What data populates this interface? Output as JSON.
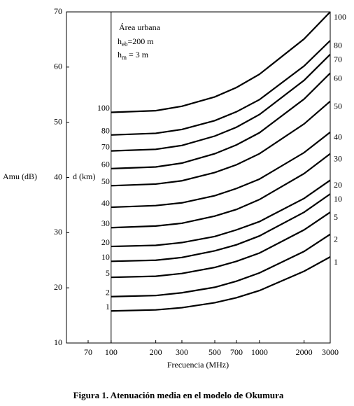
{
  "chart_data": {
    "type": "line",
    "caption": "Figura 1. Atenuación media en el modelo de Okumura",
    "xlabel": "Frecuencia (MHz)",
    "ylabel": "Amu (dB)",
    "series_label": "d (km)",
    "annotation": {
      "line1": "Área urbana",
      "line2": [
        "h",
        "eb",
        "=200 m"
      ],
      "line3": [
        "h",
        "m",
        " = 3 m"
      ]
    },
    "x_scale": "log",
    "xlim": [
      50,
      3000
    ],
    "xticks": [
      70,
      100,
      200,
      300,
      500,
      700,
      1000,
      2000,
      3000
    ],
    "ylim": [
      10,
      70
    ],
    "yticks": [
      10,
      20,
      30,
      40,
      50,
      60,
      70
    ],
    "vline": 100,
    "x": [
      100,
      200,
      300,
      500,
      700,
      1000,
      2000,
      3000
    ],
    "series": [
      {
        "name": "100",
        "color": "#000000",
        "values": [
          51.8,
          52.1,
          52.9,
          54.6,
          56.3,
          58.7,
          65.1,
          70.0
        ]
      },
      {
        "name": "80",
        "color": "#000000",
        "values": [
          47.7,
          48.0,
          48.7,
          50.3,
          51.9,
          54.1,
          60.2,
          64.8
        ]
      },
      {
        "name": "70",
        "color": "#000000",
        "values": [
          44.8,
          45.1,
          45.8,
          47.5,
          49.1,
          51.4,
          57.6,
          62.3
        ]
      },
      {
        "name": "60",
        "color": "#000000",
        "values": [
          41.6,
          41.9,
          42.6,
          44.3,
          45.9,
          48.1,
          54.2,
          58.9
        ]
      },
      {
        "name": "50",
        "color": "#000000",
        "values": [
          38.5,
          38.8,
          39.4,
          40.9,
          42.3,
          44.3,
          49.7,
          53.8
        ]
      },
      {
        "name": "40",
        "color": "#000000",
        "values": [
          34.6,
          34.9,
          35.4,
          36.7,
          38.0,
          39.7,
          44.5,
          48.2
        ]
      },
      {
        "name": "30",
        "color": "#000000",
        "values": [
          30.9,
          31.2,
          31.7,
          33.0,
          34.2,
          36.0,
          40.7,
          44.3
        ]
      },
      {
        "name": "20",
        "color": "#000000",
        "values": [
          27.5,
          27.7,
          28.2,
          29.3,
          30.5,
          32.0,
          36.2,
          39.5
        ]
      },
      {
        "name": "10",
        "color": "#000000",
        "values": [
          24.8,
          25.0,
          25.5,
          26.7,
          27.8,
          29.4,
          33.7,
          37.0
        ]
      },
      {
        "name": "5",
        "color": "#000000",
        "values": [
          21.9,
          22.1,
          22.6,
          23.7,
          24.8,
          26.3,
          30.5,
          33.7
        ]
      },
      {
        "name": "2",
        "color": "#000000",
        "values": [
          18.4,
          18.6,
          19.1,
          20.1,
          21.2,
          22.7,
          26.6,
          29.7
        ]
      },
      {
        "name": "1",
        "color": "#000000",
        "values": [
          15.8,
          16.0,
          16.4,
          17.3,
          18.2,
          19.5,
          23.0,
          25.6
        ]
      }
    ]
  }
}
